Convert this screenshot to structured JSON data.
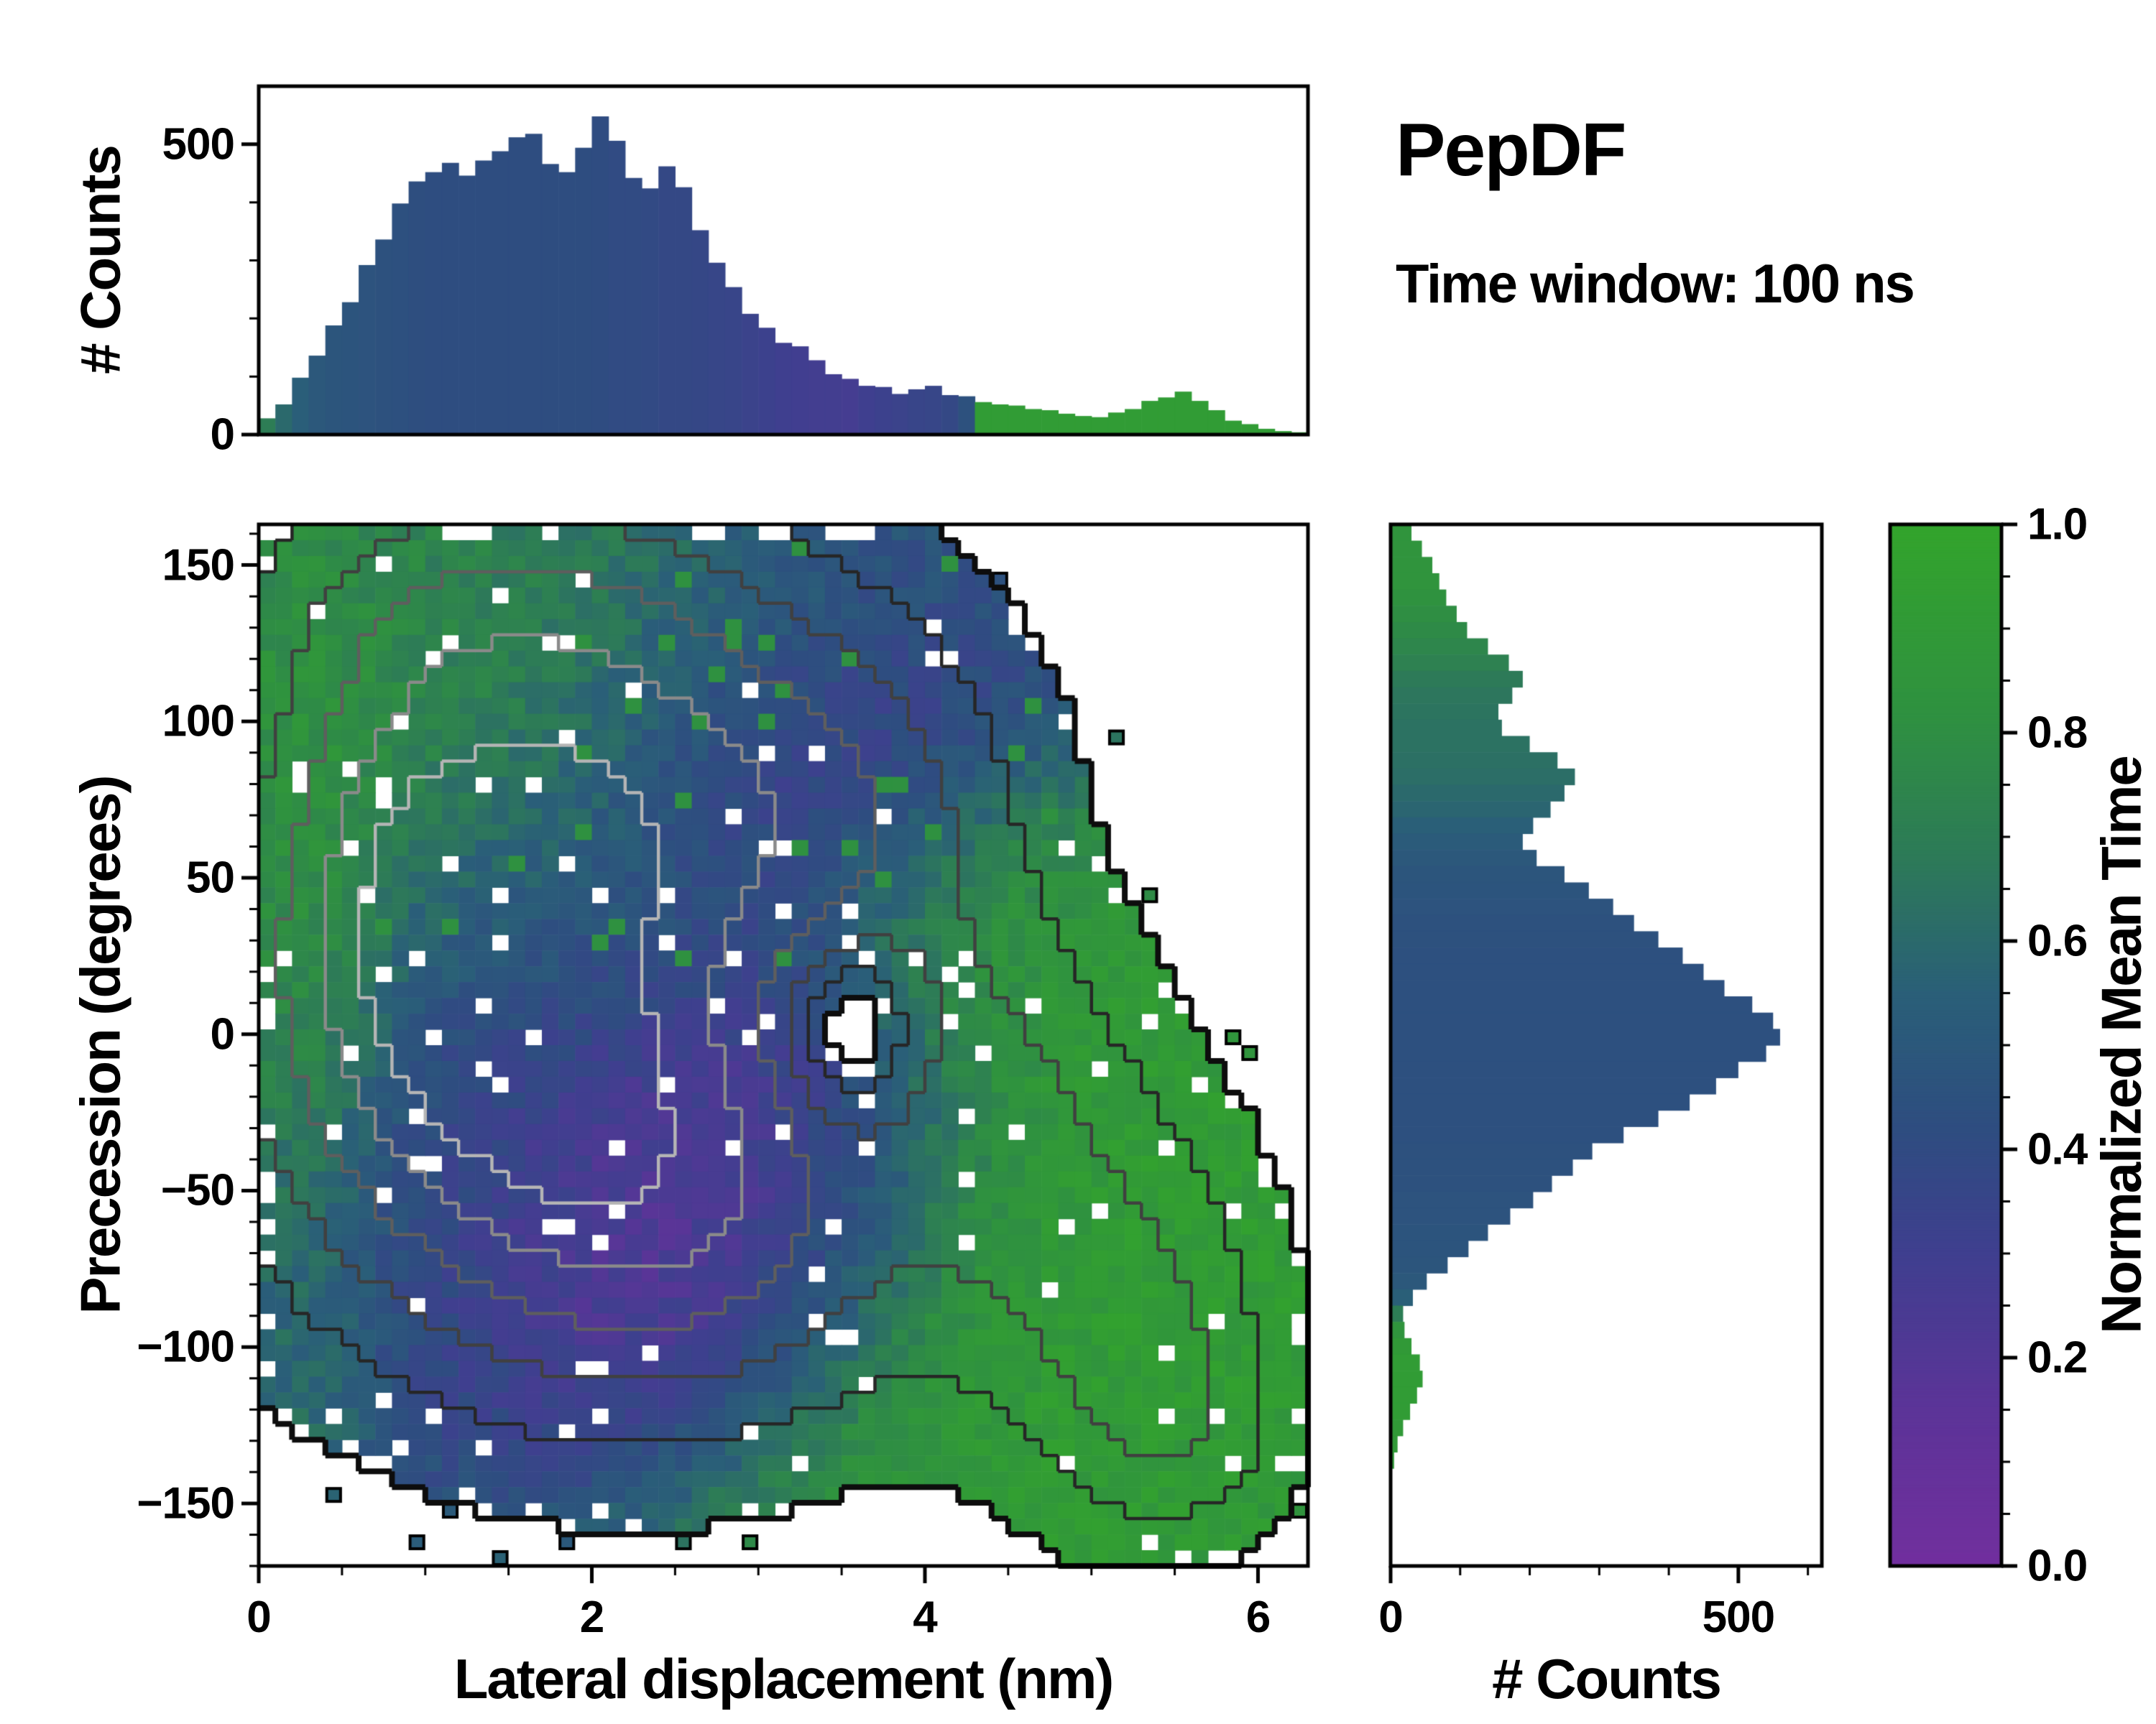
{
  "header": {
    "title": "PepDF",
    "subtitle": "Time window: 100 ns"
  },
  "colormap": {
    "name": "purple-blue-green",
    "stops": [
      [
        0.0,
        "#712f9e"
      ],
      [
        0.15,
        "#5c3498"
      ],
      [
        0.3,
        "#3f3f8f"
      ],
      [
        0.42,
        "#2e4d80"
      ],
      [
        0.55,
        "#2a5f78"
      ],
      [
        0.68,
        "#2d7a58"
      ],
      [
        0.82,
        "#2f9140"
      ],
      [
        1.0,
        "#33a42c"
      ]
    ]
  },
  "colorbar": {
    "label": "Normalized Mean Time",
    "range": [
      0.0,
      1.0
    ],
    "tick_values": [
      0.0,
      0.2,
      0.4,
      0.6,
      0.8,
      1.0
    ],
    "tick_labels": [
      "0.0",
      "0.2",
      "0.4",
      "0.6",
      "0.8",
      "1.0"
    ],
    "minor_step": 0.05
  },
  "axes": {
    "main": {
      "xlabel": "Lateral displacement (nm)",
      "ylabel": "Precession (degrees)",
      "xlim": [
        0,
        6.3
      ],
      "ylim": [
        -170,
        163
      ],
      "xtick_values": [
        0,
        2,
        4,
        6
      ],
      "xtick_labels": [
        "0",
        "2",
        "4",
        "6"
      ],
      "ytick_values": [
        -150,
        -100,
        -50,
        0,
        50,
        100,
        150
      ],
      "ytick_labels": [
        "−150",
        "−100",
        "−50",
        "0",
        "50",
        "100",
        "150"
      ],
      "x_minor_step": 0.5,
      "y_minor_step": 10
    },
    "top": {
      "ylabel": "# Counts",
      "ylim": [
        0,
        600
      ],
      "ytick_values": [
        0,
        500
      ],
      "ytick_labels": [
        "0",
        "500"
      ],
      "y_minor_step": 100
    },
    "right": {
      "xlabel": "# Counts",
      "xlim": [
        0,
        620
      ],
      "xtick_values": [
        0,
        500
      ],
      "xtick_labels": [
        "0",
        "500"
      ],
      "x_minor_step": 100
    }
  },
  "chart_data": [
    {
      "type": "bar",
      "name": "lateral-displacement-histogram",
      "orientation": "vertical",
      "x_start": 0,
      "bin_width": 0.1,
      "values": [
        28,
        52,
        98,
        136,
        188,
        228,
        292,
        336,
        398,
        436,
        452,
        468,
        446,
        472,
        488,
        512,
        518,
        466,
        452,
        494,
        548,
        506,
        442,
        424,
        462,
        426,
        352,
        296,
        254,
        208,
        184,
        158,
        152,
        128,
        104,
        96,
        84,
        82,
        70,
        78,
        84,
        68,
        66,
        56,
        52,
        50,
        44,
        42,
        36,
        32,
        30,
        38,
        44,
        58,
        64,
        74,
        58,
        42,
        24,
        18,
        10,
        6,
        4
      ],
      "color_time": [
        0.7,
        0.6,
        0.54,
        0.5,
        0.48,
        0.47,
        0.46,
        0.45,
        0.44,
        0.43,
        0.42,
        0.42,
        0.42,
        0.42,
        0.42,
        0.42,
        0.42,
        0.42,
        0.42,
        0.42,
        0.41,
        0.4,
        0.4,
        0.39,
        0.38,
        0.38,
        0.37,
        0.36,
        0.35,
        0.33,
        0.32,
        0.3,
        0.29,
        0.28,
        0.28,
        0.27,
        0.3,
        0.32,
        0.33,
        0.35,
        0.36,
        0.38,
        0.45,
        0.92,
        0.92,
        0.92,
        0.92,
        0.92,
        0.92,
        0.92,
        0.92,
        0.92,
        0.92,
        0.92,
        0.92,
        0.92,
        0.92,
        0.92,
        0.92,
        0.92,
        0.92,
        0.92,
        0.92
      ]
    },
    {
      "type": "bar",
      "name": "precession-histogram",
      "orientation": "horizontal",
      "y_start": 160,
      "bin_step": -5,
      "values": [
        30,
        45,
        60,
        70,
        80,
        95,
        110,
        140,
        170,
        190,
        175,
        155,
        160,
        200,
        240,
        265,
        250,
        230,
        205,
        190,
        210,
        250,
        285,
        320,
        350,
        385,
        420,
        450,
        480,
        520,
        550,
        560,
        540,
        500,
        468,
        430,
        385,
        335,
        290,
        262,
        232,
        205,
        172,
        140,
        112,
        82,
        52,
        32,
        18,
        20,
        30,
        42,
        46,
        38,
        28,
        18,
        10,
        5,
        0,
        0,
        0,
        0,
        0,
        0
      ],
      "color_time": [
        0.85,
        0.85,
        0.85,
        0.85,
        0.83,
        0.8,
        0.78,
        0.75,
        0.72,
        0.68,
        0.66,
        0.65,
        0.64,
        0.64,
        0.63,
        0.62,
        0.6,
        0.58,
        0.55,
        0.52,
        0.5,
        0.48,
        0.47,
        0.46,
        0.45,
        0.45,
        0.44,
        0.44,
        0.44,
        0.44,
        0.44,
        0.44,
        0.44,
        0.44,
        0.44,
        0.44,
        0.44,
        0.44,
        0.45,
        0.45,
        0.45,
        0.46,
        0.46,
        0.47,
        0.47,
        0.48,
        0.5,
        0.55,
        0.7,
        0.85,
        0.9,
        0.92,
        0.92,
        0.92,
        0.92,
        0.9,
        0.9,
        0.9,
        0.9,
        0.9,
        0.9,
        0.9,
        0.9,
        0.9
      ]
    },
    {
      "type": "heatmap",
      "name": "precession-vs-displacement-map",
      "value_label": "Normalized Mean Time",
      "grid": {
        "nx": 63,
        "ny": 66,
        "xlim": [
          0,
          6.3
        ],
        "ylim": [
          -170,
          163
        ]
      },
      "mask_threshold": 0.04,
      "density_blobs": [
        [
          1.5,
          5,
          1.05,
          60,
          1.0
        ],
        [
          2.3,
          90,
          1.05,
          45,
          0.6
        ],
        [
          1.4,
          140,
          0.9,
          28,
          0.3
        ],
        [
          2.6,
          -60,
          0.95,
          42,
          0.55
        ],
        [
          0.8,
          60,
          0.55,
          55,
          0.35
        ],
        [
          4.35,
          -5,
          0.5,
          38,
          0.2
        ],
        [
          4.7,
          -55,
          0.6,
          45,
          0.26
        ],
        [
          5.3,
          -95,
          0.5,
          38,
          0.3
        ],
        [
          5.55,
          -125,
          0.4,
          22,
          0.2
        ],
        [
          3.6,
          60,
          0.6,
          40,
          0.3
        ]
      ],
      "density_holes": [
        [
          3.55,
          2,
          0.28,
          20,
          0.5
        ]
      ],
      "time_blobs": [
        [
          0.3,
          45,
          0.3,
          70,
          0.88,
          6
        ],
        [
          1.3,
          145,
          1.6,
          28,
          0.72,
          2.5
        ],
        [
          0.9,
          95,
          0.75,
          45,
          0.85,
          3
        ],
        [
          3.5,
          95,
          0.75,
          45,
          0.26,
          3
        ],
        [
          1.7,
          55,
          0.9,
          35,
          0.5,
          2
        ],
        [
          1.4,
          -5,
          1.0,
          50,
          0.4,
          3
        ],
        [
          0.8,
          -60,
          0.7,
          35,
          0.42,
          2
        ],
        [
          2.7,
          -55,
          0.85,
          38,
          0.07,
          4
        ],
        [
          3.4,
          -15,
          0.6,
          30,
          0.15,
          2
        ],
        [
          5.0,
          -75,
          1.2,
          65,
          0.93,
          5
        ],
        [
          4.35,
          25,
          0.55,
          35,
          0.9,
          3
        ],
        [
          2.2,
          125,
          1.2,
          30,
          0.58,
          1.5
        ]
      ],
      "time_base": [
        0.5,
        0.15
      ],
      "contours": {
        "levels": [
          0.04,
          0.14,
          0.28,
          0.45,
          0.62,
          0.78
        ],
        "colors": [
          "#0d0d0d",
          "#262626",
          "#404040",
          "#5e5e5e",
          "#8a8a8a",
          "#b5b5b5"
        ]
      }
    }
  ]
}
